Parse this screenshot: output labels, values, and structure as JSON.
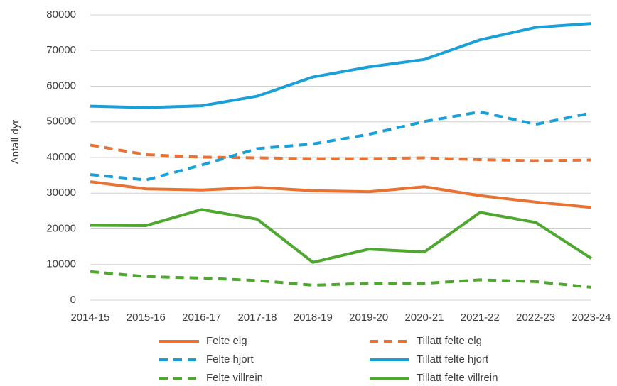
{
  "chart_data": {
    "type": "line",
    "y_label": "Antall dyr",
    "categories": [
      "2014-15",
      "2015-16",
      "2016-17",
      "2017-18",
      "2018-19",
      "2019-20",
      "2020-21",
      "2021-22",
      "2022-23",
      "2023-24"
    ],
    "series": [
      {
        "name": "Felte elg",
        "color": "#e97132",
        "line_style": "solid",
        "values": [
          33200,
          31200,
          30900,
          31600,
          30700,
          30400,
          31800,
          29300,
          27500,
          26000
        ]
      },
      {
        "name": "Tillatt felte elg",
        "color": "#e97132",
        "line_style": "dashed",
        "values": [
          43500,
          40800,
          40100,
          39900,
          39700,
          39700,
          39900,
          39400,
          39100,
          39300
        ]
      },
      {
        "name": "Felte hjort",
        "color": "#1aa0d8",
        "line_style": "dashed",
        "values": [
          35200,
          33700,
          37900,
          42500,
          43800,
          46500,
          50100,
          52800,
          49300,
          52500
        ]
      },
      {
        "name": "Tillatt felte hjort",
        "color": "#1aa0d8",
        "line_style": "solid",
        "values": [
          54400,
          54000,
          54500,
          57200,
          62600,
          65400,
          67500,
          73000,
          76500,
          77600
        ]
      },
      {
        "name": "Felte villrein",
        "color": "#4ea72e",
        "line_style": "dashed",
        "values": [
          8000,
          6600,
          6200,
          5500,
          4200,
          4700,
          4700,
          5700,
          5200,
          3600
        ]
      },
      {
        "name": "Tillatt felte villrein",
        "color": "#4ea72e",
        "line_style": "solid",
        "values": [
          21000,
          20900,
          25400,
          22700,
          10600,
          14300,
          13500,
          24600,
          21800,
          11700
        ]
      }
    ],
    "ylim": [
      0,
      80000
    ],
    "yticks": [
      0,
      10000,
      20000,
      30000,
      40000,
      50000,
      60000,
      70000,
      80000
    ],
    "grid": true
  }
}
